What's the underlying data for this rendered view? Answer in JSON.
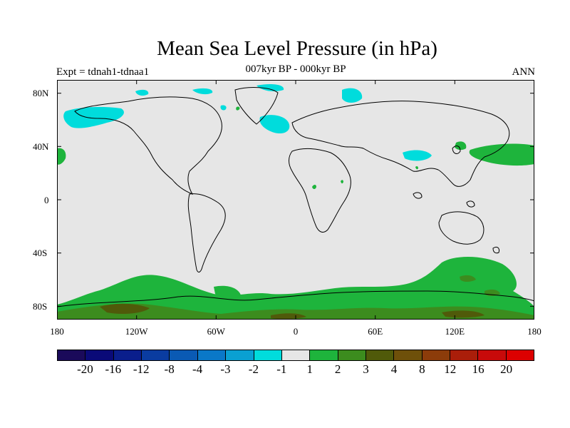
{
  "title": "Mean Sea Level Pressure (in hPa)",
  "subtitle": "007kyr BP - 000kyr BP",
  "left_label": "Expt = tdnah1-tdnaa1",
  "right_label": "ANN",
  "map": {
    "lon_ticks": [
      "180",
      "120W",
      "60W",
      "0",
      "60E",
      "120E",
      "180"
    ],
    "lat_ticks": [
      "80N",
      "40N",
      "0",
      "40S",
      "80S"
    ],
    "background_color": "#e6e6e6",
    "land_outline": "black"
  },
  "colorbar": {
    "colors": [
      "#1a0a5a",
      "#0a0a78",
      "#0a1e8c",
      "#0a3ca0",
      "#0a5ab4",
      "#0a78c8",
      "#0aa0d2",
      "#00dcdc",
      "#e6e6e6",
      "#1eb43c",
      "#3c8c1e",
      "#505a0a",
      "#6e500a",
      "#8c3c0a",
      "#aa1e0a",
      "#c80a0a",
      "#dc0000"
    ],
    "labels": [
      "-20",
      "-16",
      "-12",
      "-8",
      "-4",
      "-3",
      "-2",
      "-1",
      "1",
      "2",
      "3",
      "4",
      "8",
      "12",
      "16",
      "20"
    ]
  }
}
